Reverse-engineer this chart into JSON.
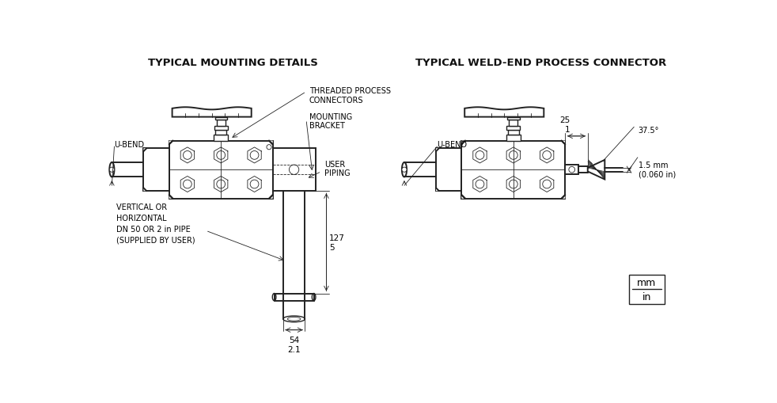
{
  "title_left": "TYPICAL MOUNTING DETAILS",
  "title_right": "TYPICAL WELD-END PROCESS CONNECTOR",
  "bg_color": "#ffffff",
  "line_color": "#000000",
  "labels": {
    "threaded_process_connectors": "THREADED PROCESS\nCONNECTORS",
    "mounting_bracket": "MOUNTING\nBRACKET",
    "user_piping": "USER\nPIPING",
    "u_bend_left": "U-BEND",
    "u_bend_right": "U-BEND",
    "vertical_or_horizontal": "VERTICAL OR\nHORIZONTAL\nDN 50 OR 2 in PIPE\n(SUPPLIED BY USER)",
    "dim_127_5": "127\n5",
    "dim_54_21": "54\n2.1",
    "dim_25_1": "25\n1",
    "dim_375": "37.5°",
    "dim_15mm": "1.5 mm\n(0.060 in)",
    "mm_in_top": "mm",
    "mm_in_bot": "in"
  }
}
